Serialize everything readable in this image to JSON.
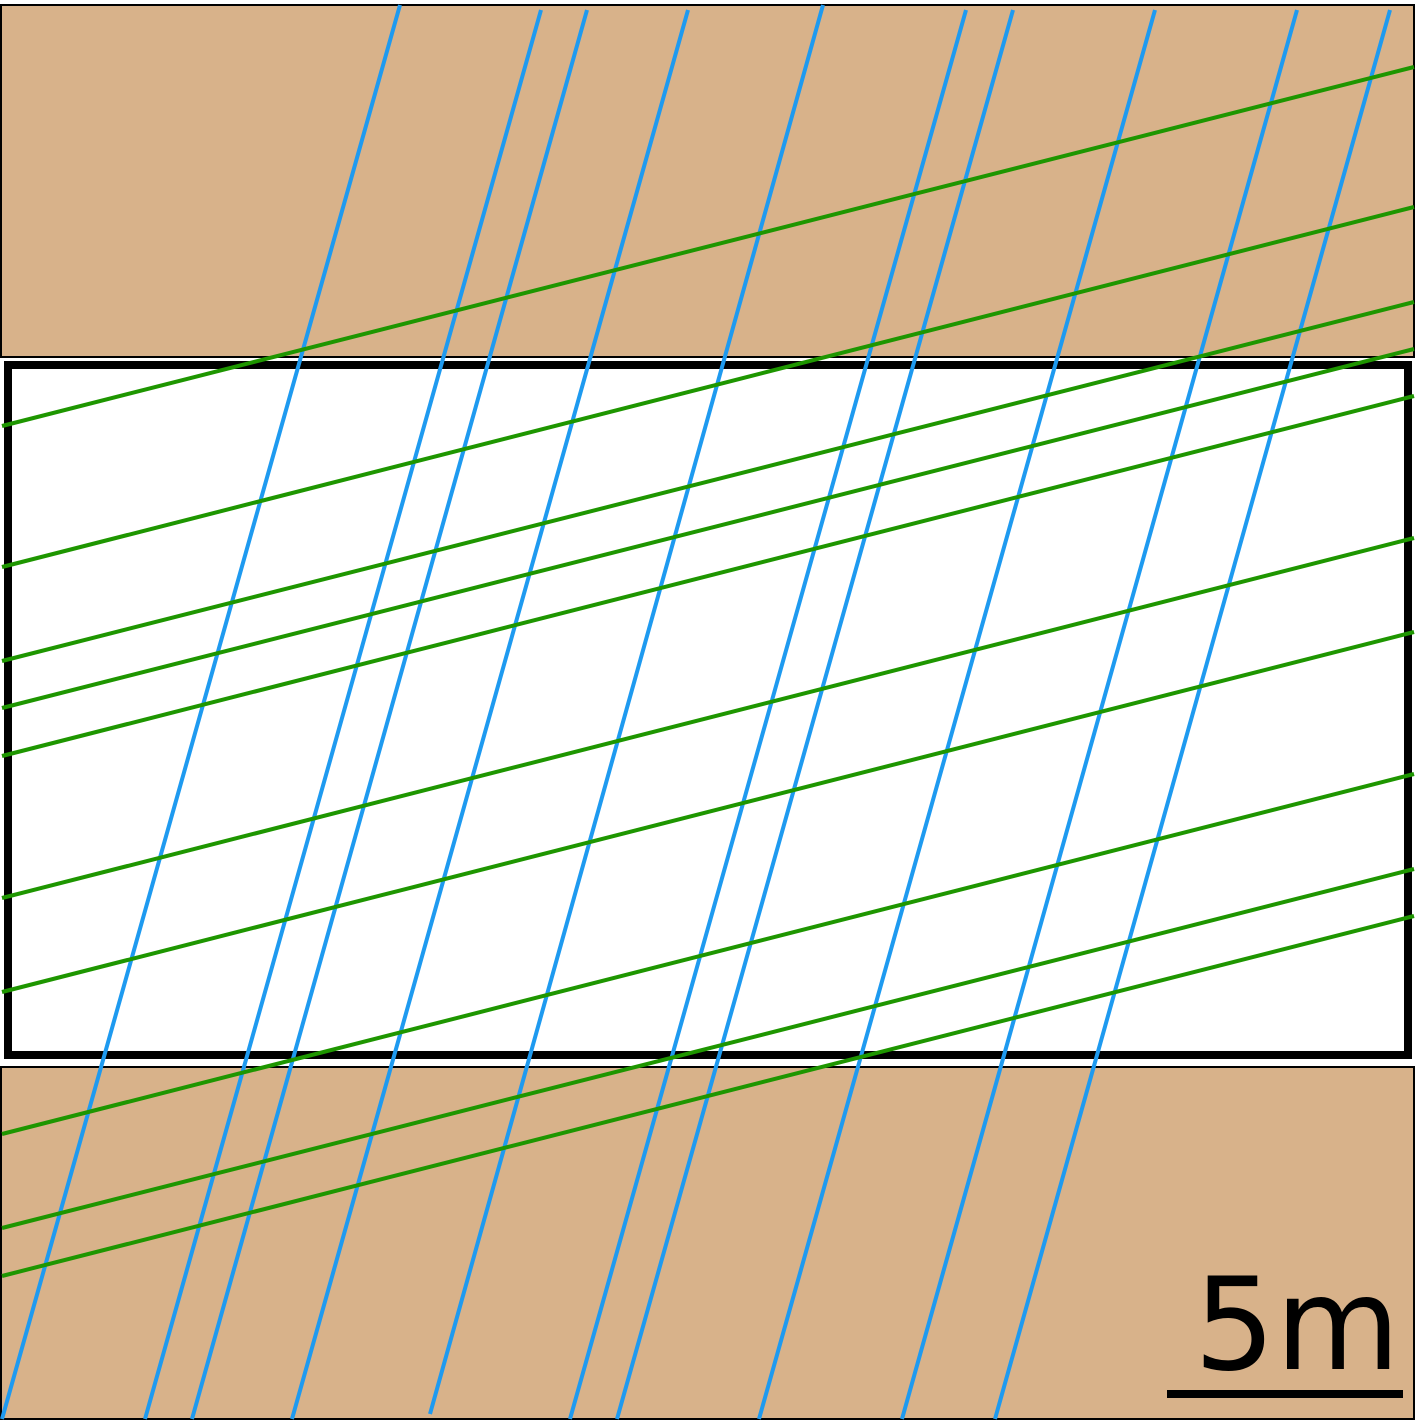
{
  "diagram": {
    "colors": {
      "host_rock": "#D8B28A",
      "excavation_fill": "#FFFFFF",
      "excavation_outline": "#000000",
      "joint_set_1": "#1E9AF0",
      "joint_set_2": "#1E9600",
      "scale_bar": "#000000"
    },
    "scale_bar": {
      "label": "5m"
    }
  }
}
